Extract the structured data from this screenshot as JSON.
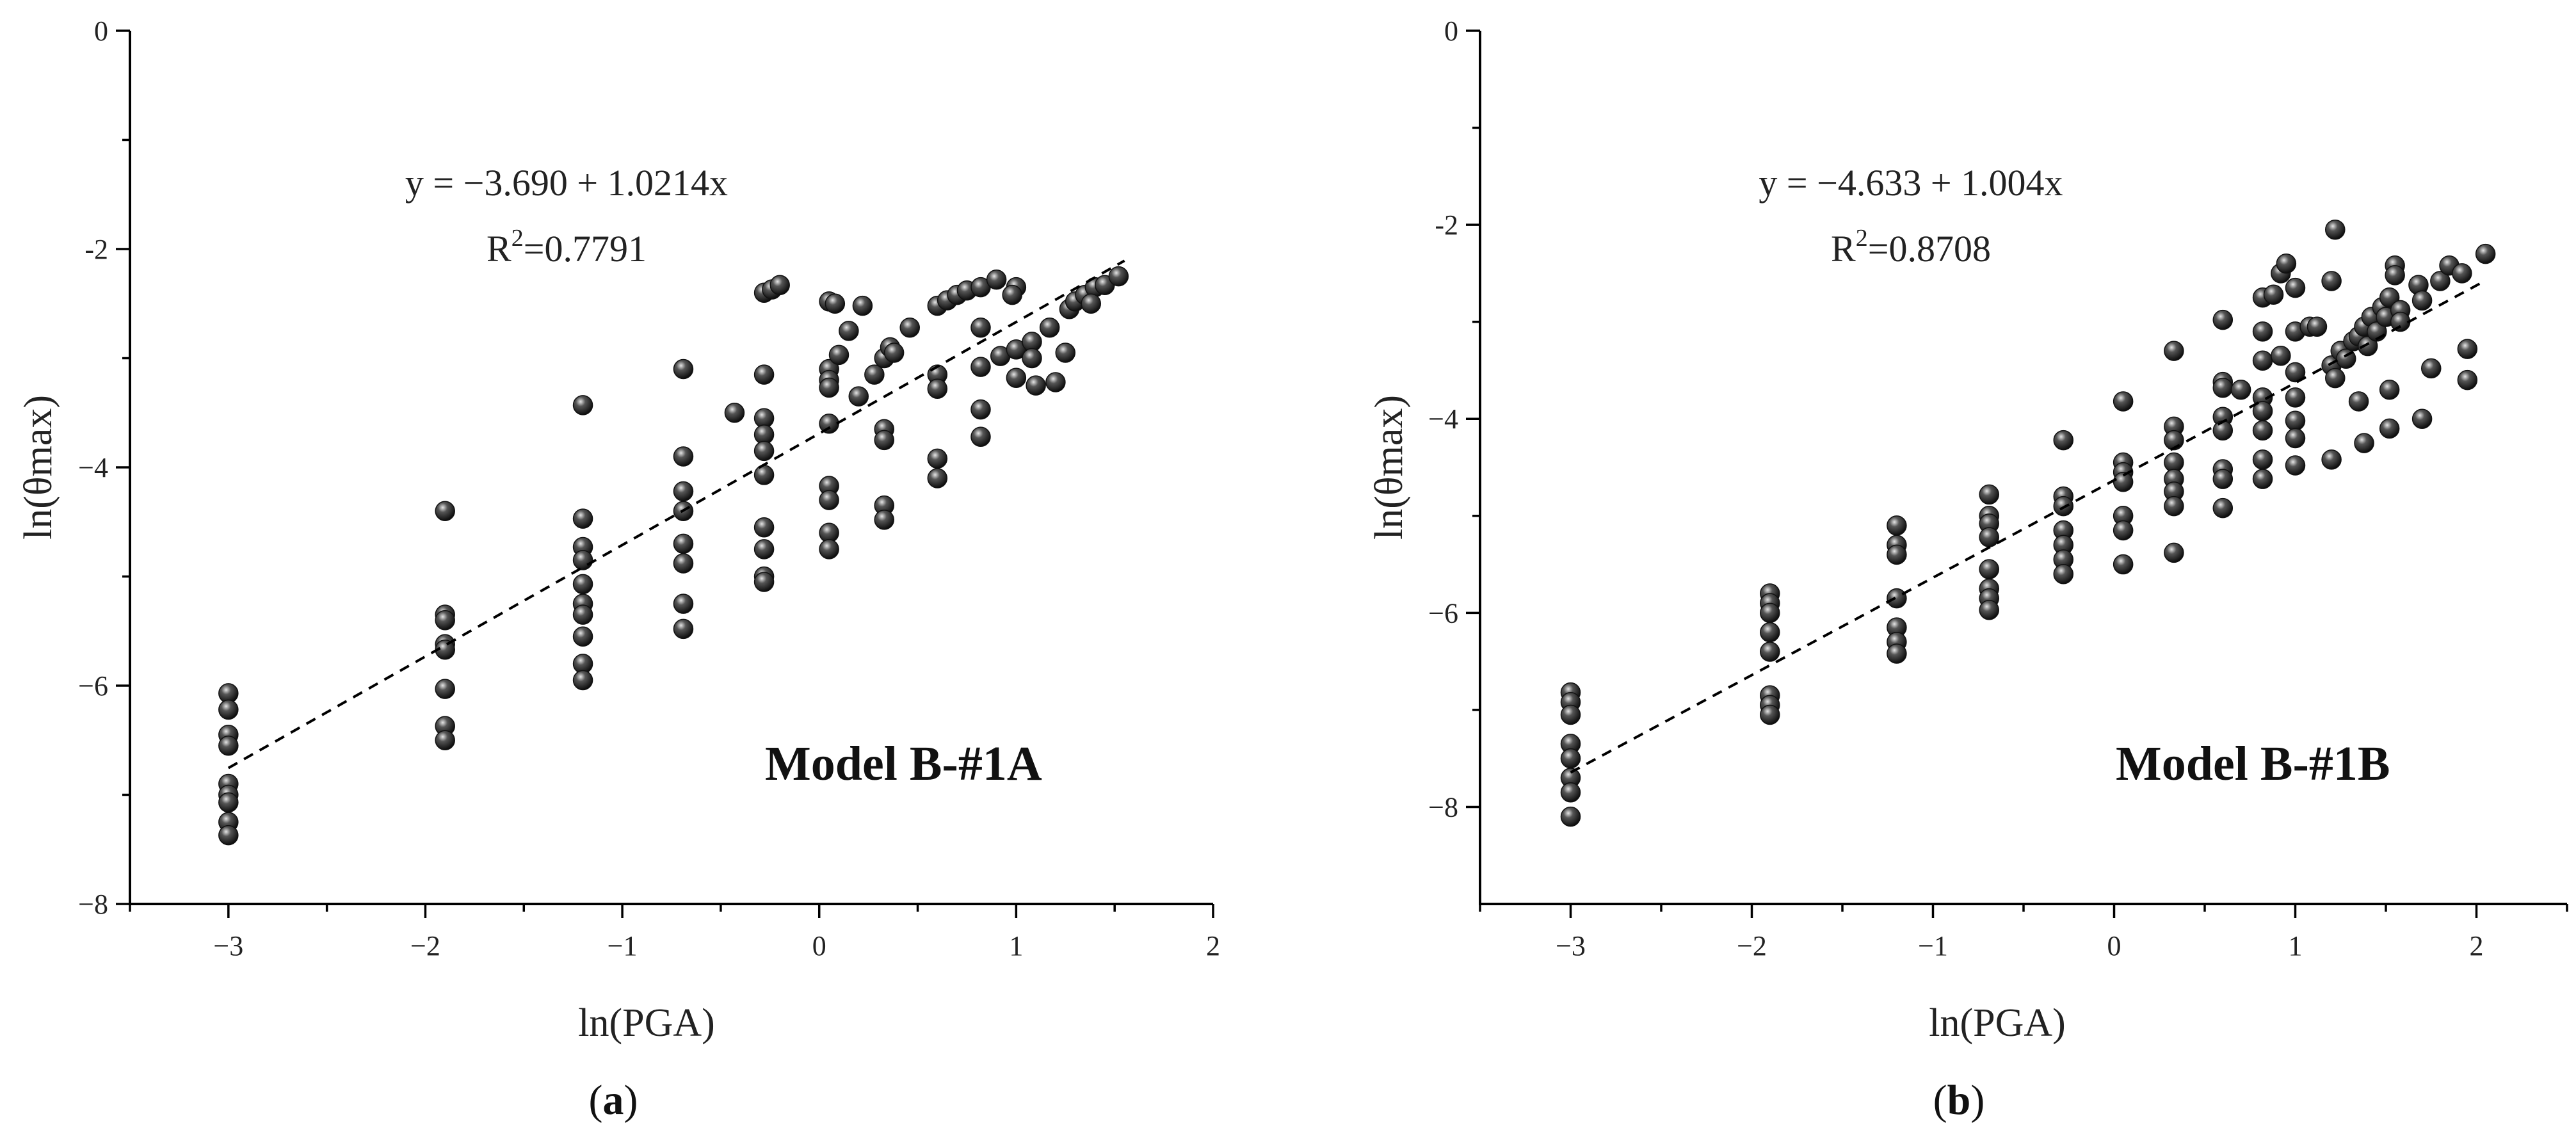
{
  "colors": {
    "point": "#111111",
    "highlight": "#e6e6e6",
    "axis": "#000000"
  },
  "chart_data": [
    {
      "type": "scatter",
      "panel_label": "a",
      "annotation_model": "Model B-#1A",
      "equation": "y = −3.690 + 1.0214x",
      "r2_prefix": "R",
      "r2_sup": "2",
      "r2_value": "=0.7791",
      "fit": {
        "intercept": -3.69,
        "slope": 1.0214,
        "x_range": [
          -3,
          1.55
        ]
      },
      "xlabel": "ln(PGA)",
      "ylabel": "ln(θmax)",
      "xlim": [
        -3.5,
        2
      ],
      "ylim": [
        -8,
        0
      ],
      "xticks": [
        -3,
        -2,
        -1,
        0,
        1,
        2
      ],
      "xtick_labels": [
        "−3",
        "−2",
        "−1",
        "0",
        "1",
        "2"
      ],
      "yticks": [
        -8,
        -6,
        -4,
        -2,
        0
      ],
      "ytick_labels": [
        "−8",
        "−6",
        "−4",
        "-2",
        "0"
      ],
      "points": [
        [
          -3,
          -6.07
        ],
        [
          -3,
          -6.22
        ],
        [
          -3,
          -6.45
        ],
        [
          -3,
          -6.55
        ],
        [
          -3,
          -6.9
        ],
        [
          -3,
          -7.0
        ],
        [
          -3,
          -7.07
        ],
        [
          -3,
          -7.25
        ],
        [
          -3,
          -7.37
        ],
        [
          -1.9,
          -4.4
        ],
        [
          -1.9,
          -5.35
        ],
        [
          -1.9,
          -5.4
        ],
        [
          -1.9,
          -5.62
        ],
        [
          -1.9,
          -5.67
        ],
        [
          -1.9,
          -6.03
        ],
        [
          -1.9,
          -6.37
        ],
        [
          -1.9,
          -6.5
        ],
        [
          -1.2,
          -3.43
        ],
        [
          -1.2,
          -4.47
        ],
        [
          -1.2,
          -4.73
        ],
        [
          -1.2,
          -4.85
        ],
        [
          -1.2,
          -5.07
        ],
        [
          -1.2,
          -5.25
        ],
        [
          -1.2,
          -5.35
        ],
        [
          -1.2,
          -5.55
        ],
        [
          -1.2,
          -5.8
        ],
        [
          -1.2,
          -5.95
        ],
        [
          -0.69,
          -3.1
        ],
        [
          -0.69,
          -3.9
        ],
        [
          -0.69,
          -4.22
        ],
        [
          -0.69,
          -4.4
        ],
        [
          -0.69,
          -4.7
        ],
        [
          -0.69,
          -4.88
        ],
        [
          -0.69,
          -5.25
        ],
        [
          -0.69,
          -5.48
        ],
        [
          -0.43,
          -3.5
        ],
        [
          -0.28,
          -2.4
        ],
        [
          -0.24,
          -2.37
        ],
        [
          -0.2,
          -2.33
        ],
        [
          -0.28,
          -3.15
        ],
        [
          -0.28,
          -3.55
        ],
        [
          -0.28,
          -3.7
        ],
        [
          -0.28,
          -3.85
        ],
        [
          -0.28,
          -4.07
        ],
        [
          -0.28,
          -4.55
        ],
        [
          -0.28,
          -4.75
        ],
        [
          -0.28,
          -5.0
        ],
        [
          -0.28,
          -5.05
        ],
        [
          0.05,
          -2.48
        ],
        [
          0.08,
          -2.5
        ],
        [
          0.05,
          -3.1
        ],
        [
          0.05,
          -3.2
        ],
        [
          0.05,
          -3.27
        ],
        [
          0.05,
          -3.6
        ],
        [
          0.05,
          -4.17
        ],
        [
          0.05,
          -4.3
        ],
        [
          0.05,
          -4.6
        ],
        [
          0.05,
          -4.75
        ],
        [
          0.1,
          -2.97
        ],
        [
          0.15,
          -2.75
        ],
        [
          0.2,
          -3.35
        ],
        [
          0.22,
          -2.52
        ],
        [
          0.28,
          -3.15
        ],
        [
          0.33,
          -3.0
        ],
        [
          0.36,
          -2.9
        ],
        [
          0.38,
          -2.95
        ],
        [
          0.33,
          -3.65
        ],
        [
          0.33,
          -3.75
        ],
        [
          0.33,
          -4.35
        ],
        [
          0.33,
          -4.48
        ],
        [
          0.46,
          -2.72
        ],
        [
          0.6,
          -2.52
        ],
        [
          0.65,
          -2.47
        ],
        [
          0.7,
          -2.42
        ],
        [
          0.75,
          -2.38
        ],
        [
          0.82,
          -2.35
        ],
        [
          0.9,
          -2.28
        ],
        [
          1.0,
          -2.35
        ],
        [
          0.98,
          -2.42
        ],
        [
          0.6,
          -3.15
        ],
        [
          0.6,
          -3.28
        ],
        [
          0.6,
          -3.92
        ],
        [
          0.6,
          -4.1
        ],
        [
          0.82,
          -2.72
        ],
        [
          0.82,
          -3.08
        ],
        [
          0.82,
          -3.47
        ],
        [
          0.82,
          -3.72
        ],
        [
          0.92,
          -2.98
        ],
        [
          1.0,
          -2.92
        ],
        [
          1.0,
          -3.18
        ],
        [
          1.08,
          -2.85
        ],
        [
          1.08,
          -3.0
        ],
        [
          1.1,
          -3.25
        ],
        [
          1.17,
          -2.72
        ],
        [
          1.2,
          -3.22
        ],
        [
          1.25,
          -2.95
        ],
        [
          1.27,
          -2.55
        ],
        [
          1.3,
          -2.48
        ],
        [
          1.35,
          -2.42
        ],
        [
          1.4,
          -2.35
        ],
        [
          1.38,
          -2.5
        ],
        [
          1.45,
          -2.33
        ],
        [
          1.52,
          -2.25
        ]
      ]
    },
    {
      "type": "scatter",
      "panel_label": "b",
      "annotation_model": "Model B-#1B",
      "equation": "y = −4.633 + 1.004x",
      "r2_prefix": "R",
      "r2_sup": "2",
      "r2_value": "=0.8708",
      "fit": {
        "intercept": -4.633,
        "slope": 1.004,
        "x_range": [
          -3,
          2.05
        ]
      },
      "xlabel": "ln(PGA)",
      "ylabel": "ln(θmax)",
      "xlim": [
        -3.5,
        2.5
      ],
      "ylim": [
        -9,
        0
      ],
      "xticks": [
        -3,
        -2,
        -1,
        0,
        1,
        2
      ],
      "xtick_labels": [
        "−3",
        "−2",
        "−1",
        "0",
        "1",
        "2"
      ],
      "yticks": [
        -8,
        -6,
        -4,
        -2,
        0
      ],
      "ytick_labels": [
        "−8",
        "−6",
        "−4",
        "-2",
        "0"
      ],
      "points": [
        [
          -3,
          -6.82
        ],
        [
          -3,
          -6.92
        ],
        [
          -3,
          -7.05
        ],
        [
          -3,
          -7.35
        ],
        [
          -3,
          -7.5
        ],
        [
          -3,
          -7.7
        ],
        [
          -3,
          -7.85
        ],
        [
          -3,
          -8.1
        ],
        [
          -1.9,
          -5.8
        ],
        [
          -1.9,
          -5.9
        ],
        [
          -1.9,
          -6.0
        ],
        [
          -1.9,
          -6.2
        ],
        [
          -1.9,
          -6.4
        ],
        [
          -1.9,
          -6.85
        ],
        [
          -1.9,
          -6.95
        ],
        [
          -1.9,
          -7.05
        ],
        [
          -1.2,
          -5.1
        ],
        [
          -1.2,
          -5.3
        ],
        [
          -1.2,
          -5.4
        ],
        [
          -1.2,
          -5.85
        ],
        [
          -1.2,
          -6.15
        ],
        [
          -1.2,
          -6.3
        ],
        [
          -1.2,
          -6.42
        ],
        [
          -0.69,
          -4.78
        ],
        [
          -0.69,
          -5.0
        ],
        [
          -0.69,
          -5.08
        ],
        [
          -0.69,
          -5.22
        ],
        [
          -0.69,
          -5.55
        ],
        [
          -0.69,
          -5.75
        ],
        [
          -0.69,
          -5.85
        ],
        [
          -0.69,
          -5.97
        ],
        [
          -0.28,
          -4.22
        ],
        [
          -0.28,
          -4.8
        ],
        [
          -0.28,
          -4.9
        ],
        [
          -0.28,
          -5.15
        ],
        [
          -0.28,
          -5.3
        ],
        [
          -0.28,
          -5.45
        ],
        [
          -0.28,
          -5.6
        ],
        [
          0.05,
          -3.82
        ],
        [
          0.05,
          -4.45
        ],
        [
          0.05,
          -4.55
        ],
        [
          0.05,
          -4.65
        ],
        [
          0.05,
          -5.0
        ],
        [
          0.05,
          -5.15
        ],
        [
          0.05,
          -5.5
        ],
        [
          0.33,
          -3.3
        ],
        [
          0.33,
          -4.08
        ],
        [
          0.33,
          -4.22
        ],
        [
          0.33,
          -4.45
        ],
        [
          0.33,
          -4.62
        ],
        [
          0.33,
          -4.75
        ],
        [
          0.33,
          -4.9
        ],
        [
          0.33,
          -5.38
        ],
        [
          0.6,
          -2.98
        ],
        [
          0.6,
          -3.62
        ],
        [
          0.6,
          -3.68
        ],
        [
          0.6,
          -3.98
        ],
        [
          0.6,
          -4.12
        ],
        [
          0.6,
          -4.52
        ],
        [
          0.6,
          -4.62
        ],
        [
          0.6,
          -4.92
        ],
        [
          0.7,
          -3.7
        ],
        [
          0.82,
          -2.75
        ],
        [
          0.82,
          -3.1
        ],
        [
          0.82,
          -3.4
        ],
        [
          0.82,
          -3.78
        ],
        [
          0.82,
          -3.92
        ],
        [
          0.82,
          -4.12
        ],
        [
          0.82,
          -4.42
        ],
        [
          0.82,
          -4.62
        ],
        [
          0.88,
          -2.72
        ],
        [
          0.92,
          -2.5
        ],
        [
          0.95,
          -2.4
        ],
        [
          0.92,
          -3.35
        ],
        [
          1.0,
          -2.65
        ],
        [
          1.0,
          -3.1
        ],
        [
          1.0,
          -3.52
        ],
        [
          1.0,
          -3.78
        ],
        [
          1.0,
          -4.02
        ],
        [
          1.0,
          -4.2
        ],
        [
          1.0,
          -4.48
        ],
        [
          1.08,
          -3.05
        ],
        [
          1.12,
          -3.05
        ],
        [
          1.2,
          -2.58
        ],
        [
          1.22,
          -2.05
        ],
        [
          1.2,
          -3.45
        ],
        [
          1.22,
          -3.58
        ],
        [
          1.2,
          -4.42
        ],
        [
          1.25,
          -3.3
        ],
        [
          1.28,
          -3.38
        ],
        [
          1.32,
          -3.2
        ],
        [
          1.35,
          -3.15
        ],
        [
          1.38,
          -3.05
        ],
        [
          1.4,
          -3.25
        ],
        [
          1.42,
          -2.95
        ],
        [
          1.45,
          -3.1
        ],
        [
          1.48,
          -2.85
        ],
        [
          1.5,
          -2.95
        ],
        [
          1.52,
          -2.75
        ],
        [
          1.35,
          -3.82
        ],
        [
          1.38,
          -4.25
        ],
        [
          1.52,
          -3.7
        ],
        [
          1.52,
          -4.1
        ],
        [
          1.55,
          -2.42
        ],
        [
          1.55,
          -2.52
        ],
        [
          1.58,
          -2.88
        ],
        [
          1.58,
          -3.0
        ],
        [
          1.68,
          -2.62
        ],
        [
          1.7,
          -2.78
        ],
        [
          1.7,
          -4.0
        ],
        [
          1.75,
          -3.48
        ],
        [
          1.8,
          -2.58
        ],
        [
          1.85,
          -2.42
        ],
        [
          1.92,
          -2.5
        ],
        [
          1.95,
          -3.28
        ],
        [
          1.95,
          -3.6
        ],
        [
          2.05,
          -2.3
        ]
      ]
    }
  ]
}
